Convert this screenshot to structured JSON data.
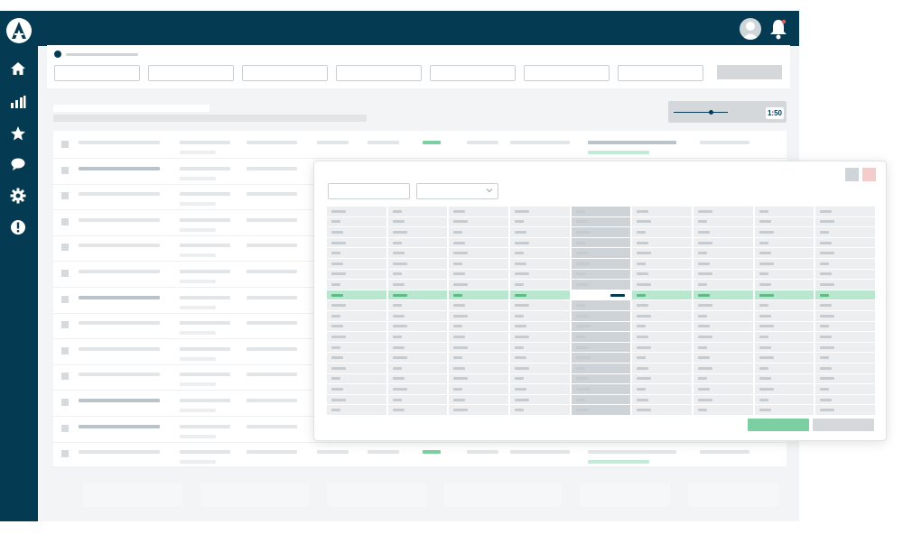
{
  "zoom": {
    "value": "1:50",
    "level": 0.78
  },
  "colors": {
    "navy": "#043a52",
    "accent_green": "#7ccfa1",
    "light_green": "#c2ecd8",
    "light_red": "#f4cdcd",
    "row_highlight": "#b9e6ce",
    "column_highlight": "#cdd3d7"
  },
  "icons": {
    "logo": "logo-icon",
    "nav": [
      "home-icon",
      "bar-chart-icon",
      "star-icon",
      "chat-icon",
      "gear-icon",
      "alert-icon"
    ],
    "topbar": [
      "avatar-icon",
      "bell-icon"
    ]
  },
  "main_table": {
    "row_count": 13,
    "filter_fields": 7
  },
  "modal": {
    "columns": 9,
    "rows": 20,
    "highlight_row": 8,
    "highlight_column": 4
  }
}
